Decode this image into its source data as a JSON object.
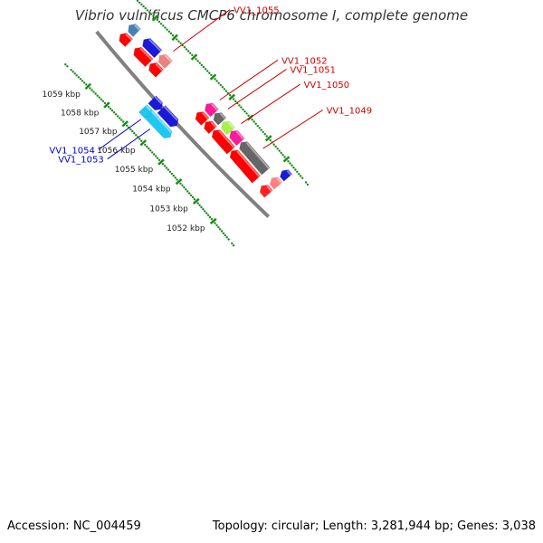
{
  "title": "Vibrio vulnificus CMCP6 chromosome I, complete genome",
  "accession": "Accession: NC_004459",
  "topology": "Topology: circular; Length: 3,281,944 bp; Genes: 3,038",
  "ticks": [
    {
      "label": "1052 kbp",
      "pos": 1052
    },
    {
      "label": "1053 kbp",
      "pos": 1053
    },
    {
      "label": "1054 kbp",
      "pos": 1054
    },
    {
      "label": "1055 kbp",
      "pos": 1055
    },
    {
      "label": "1056 kbp",
      "pos": 1056
    },
    {
      "label": "1057 kbp",
      "pos": 1057
    },
    {
      "label": "1058 kbp",
      "pos": 1058
    },
    {
      "label": "1059 kbp",
      "pos": 1059
    }
  ],
  "genes": [
    {
      "label": "",
      "start": 1051.45,
      "end": 1051.85,
      "track": 0,
      "strand": 1,
      "color": "#ff2020"
    },
    {
      "label": "",
      "start": 1051.45,
      "end": 1051.82,
      "track": 1,
      "strand": 1,
      "color": "#ff8080"
    },
    {
      "label": "",
      "start": 1051.45,
      "end": 1051.78,
      "track": 2,
      "strand": 1,
      "color": "#1a1ad8"
    },
    {
      "label": "VV1_1049",
      "start": 1052.15,
      "end": 1053.55,
      "track": 0,
      "strand": 1,
      "color": "#ff0000"
    },
    {
      "label": "",
      "start": 1052.15,
      "end": 1053.55,
      "track": 1,
      "strand": 1,
      "color": "#666666"
    },
    {
      "label": "VV1_1050",
      "start": 1053.57,
      "end": 1054.55,
      "track": 0,
      "strand": 1,
      "color": "#ff0000"
    },
    {
      "label": "",
      "start": 1053.57,
      "end": 1054.1,
      "track": 1,
      "strand": 1,
      "color": "#ff1a9a"
    },
    {
      "label": "",
      "start": 1054.1,
      "end": 1054.55,
      "track": 1,
      "strand": 1,
      "color": "#a8f04a"
    },
    {
      "label": "VV1_1051",
      "start": 1054.58,
      "end": 1054.98,
      "track": 0,
      "strand": 1,
      "color": "#ff0000"
    },
    {
      "label": "",
      "start": 1054.58,
      "end": 1054.98,
      "track": 1,
      "strand": 1,
      "color": "#666666"
    },
    {
      "label": "VV1_1052",
      "start": 1055.0,
      "end": 1055.45,
      "track": 0,
      "strand": 1,
      "color": "#ff0000"
    },
    {
      "label": "",
      "start": 1055.0,
      "end": 1055.45,
      "track": 1,
      "strand": 1,
      "color": "#ff1a9a"
    },
    {
      "label": "VV1_1053",
      "start": 1055.45,
      "end": 1056.95,
      "track": 4,
      "strand": -1,
      "color": "#1ec8f0"
    },
    {
      "label": "",
      "start": 1055.6,
      "end": 1056.45,
      "track": 3,
      "strand": -1,
      "color": "#1a1ad8"
    },
    {
      "label": "VV1_1054",
      "start": 1056.45,
      "end": 1056.95,
      "track": 3,
      "strand": -1,
      "color": "#1a1ad8"
    },
    {
      "label": "",
      "start": 1056.55,
      "end": 1056.95,
      "track": 4,
      "strand": -1,
      "color": "#1ec8f0"
    },
    {
      "label": "",
      "start": 1057.45,
      "end": 1057.95,
      "track": 0,
      "strand": 1,
      "color": "#ff0000"
    },
    {
      "label": "VV1_1055",
      "start": 1057.45,
      "end": 1057.92,
      "track": 1,
      "strand": 1,
      "color": "#f08080"
    },
    {
      "label": "",
      "start": 1058.0,
      "end": 1058.75,
      "track": 0,
      "strand": 1,
      "color": "#ff0000"
    },
    {
      "label": "",
      "start": 1058.0,
      "end": 1058.75,
      "track": 1,
      "strand": 1,
      "color": "#1a1ad8"
    },
    {
      "label": "",
      "start": 1059.05,
      "end": 1059.5,
      "track": 0,
      "strand": 1,
      "color": "#ff0000"
    },
    {
      "label": "",
      "start": 1059.1,
      "end": 1059.5,
      "track": 1,
      "strand": 1,
      "color": "#4682b4"
    }
  ],
  "colors": {
    "backbone": "#808080",
    "tick_dots": "#1a8a1a",
    "forward_label": "#cc0000",
    "reverse_label": "#0000cc"
  }
}
